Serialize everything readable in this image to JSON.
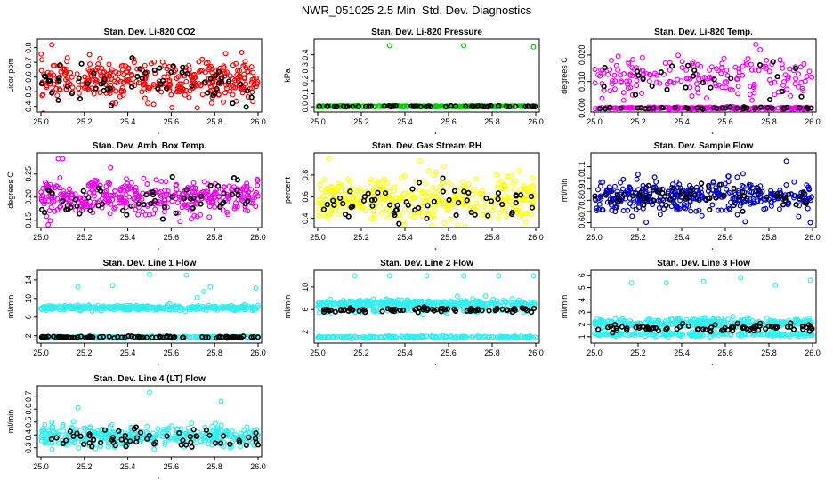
{
  "figure": {
    "title": "NWR_051025  2.5 Min. Std. Dev. Diagnostics"
  },
  "chart_data": [
    {
      "type": "scatter",
      "title": "Stan. Dev. Li-820 CO2",
      "xlabel": "",
      "ylabel": "Licor ppm",
      "xlim": [
        25.0,
        26.0
      ],
      "ylim": [
        0.38,
        0.84
      ],
      "xticks": [
        "25.0",
        "25.2",
        "25.4",
        "25.6",
        "25.8",
        "26.0"
      ],
      "yticks": [
        "0.4",
        "0.5",
        "0.6",
        "0.7",
        "0.8"
      ],
      "series": [
        {
          "name": "open",
          "color": "#ff0000",
          "bands": [
            {
              "base": 0.58,
              "spread": 0.065,
              "count": 360
            }
          ],
          "outliers": [
            [
              25.05,
              0.82
            ],
            [
              25.43,
              0.7
            ],
            [
              25.72,
              0.39
            ],
            [
              25.97,
              0.67
            ],
            [
              25.33,
              0.42
            ]
          ]
        },
        {
          "name": "filled",
          "color": "#000000",
          "bands": [
            {
              "base": 0.55,
              "spread": 0.06,
              "count": 60
            }
          ],
          "outliers": [
            [
              25.42,
              0.73
            ]
          ]
        }
      ]
    },
    {
      "type": "scatter",
      "title": "Stan. Dev. Li-820 Pressure",
      "xlabel": "",
      "ylabel": "kPa",
      "xlim": [
        25.0,
        26.0
      ],
      "ylim": [
        -0.02,
        0.5
      ],
      "xticks": [
        "25.0",
        "25.2",
        "25.4",
        "25.6",
        "25.8",
        "26.0"
      ],
      "yticks": [
        "0.0",
        "0.1",
        "0.2",
        "0.3",
        "0.4"
      ],
      "series": [
        {
          "name": "open",
          "color": "#00cc00",
          "bands": [
            {
              "base": 0.003,
              "spread": 0.002,
              "count": 320
            }
          ],
          "outliers": [
            [
              25.33,
              0.47
            ],
            [
              25.67,
              0.47
            ],
            [
              25.99,
              0.46
            ]
          ]
        },
        {
          "name": "filled",
          "color": "#000000",
          "bands": [
            {
              "base": 0.003,
              "spread": 0.002,
              "count": 60
            }
          ],
          "outliers": []
        }
      ]
    },
    {
      "type": "scatter",
      "title": "Stan. Dev. Li-820 Temp.",
      "xlabel": "",
      "ylabel": "degrees C",
      "xlim": [
        25.0,
        26.0
      ],
      "ylim": [
        -0.0005,
        0.025
      ],
      "xticks": [
        "25.0",
        "25.2",
        "25.4",
        "25.6",
        "25.8",
        "26.0"
      ],
      "yticks": [
        "0.000",
        "0.010",
        "0.020"
      ],
      "series": [
        {
          "name": "open",
          "color": "#ee00ee",
          "bands": [
            {
              "base": 0.0,
              "spread": 0.0002,
              "count": 200
            },
            {
              "base": 0.011,
              "spread": 0.004,
              "count": 180
            }
          ],
          "outliers": [
            [
              25.74,
              0.024
            ],
            [
              25.22,
              0.019
            ],
            [
              25.76,
              0.022
            ]
          ]
        },
        {
          "name": "filled",
          "color": "#000000",
          "bands": [
            {
              "base": 0.0,
              "spread": 0.0002,
              "count": 40
            },
            {
              "base": 0.011,
              "spread": 0.003,
              "count": 25
            }
          ],
          "outliers": []
        }
      ]
    },
    {
      "type": "scatter",
      "title": "Stan. Dev. Amb. Box Temp.",
      "xlabel": "",
      "ylabel": "degrees C",
      "xlim": [
        25.0,
        26.0
      ],
      "ylim": [
        0.14,
        0.29
      ],
      "xticks": [
        "25.0",
        "25.2",
        "25.4",
        "25.6",
        "25.8",
        "26.0"
      ],
      "yticks": [
        "0.15",
        "0.20",
        "0.25"
      ],
      "series": [
        {
          "name": "open",
          "color": "#ee00ee",
          "bands": [
            {
              "base": 0.2,
              "spread": 0.018,
              "count": 380
            }
          ],
          "outliers": [
            [
              25.08,
              0.283
            ],
            [
              25.1,
              0.283
            ],
            [
              25.32,
              0.264
            ]
          ]
        },
        {
          "name": "filled",
          "color": "#000000",
          "bands": [
            {
              "base": 0.195,
              "spread": 0.018,
              "count": 55
            }
          ],
          "outliers": []
        }
      ]
    },
    {
      "type": "scatter",
      "title": "Stan. Dev. Gas Stream RH",
      "xlabel": "",
      "ylabel": "percent",
      "xlim": [
        25.0,
        26.0
      ],
      "ylim": [
        0.34,
        0.98
      ],
      "xticks": [
        "25.0",
        "25.2",
        "25.4",
        "25.6",
        "25.8",
        "26.0"
      ],
      "yticks": [
        "0.4",
        "0.6",
        "0.8"
      ],
      "series": [
        {
          "name": "open",
          "color": "#ffff00",
          "bands": [
            {
              "base": 0.56,
              "spread": 0.11,
              "count": 380
            }
          ],
          "outliers": [
            [
              25.05,
              0.95
            ],
            [
              25.47,
              0.93
            ],
            [
              25.58,
              0.88
            ]
          ]
        },
        {
          "name": "filled",
          "color": "#000000",
          "bands": [
            {
              "base": 0.52,
              "spread": 0.08,
              "count": 60
            }
          ],
          "outliers": []
        }
      ]
    },
    {
      "type": "scatter",
      "title": "Stan. Dev. Sample Flow",
      "xlabel": "",
      "ylabel": "ml/min",
      "xlim": [
        25.0,
        26.0
      ],
      "ylim": [
        0.58,
        1.2
      ],
      "xticks": [
        "25.0",
        "25.2",
        "25.4",
        "25.6",
        "25.8",
        "26.0"
      ],
      "yticks": [
        "0.6",
        "0.7",
        "0.8",
        "0.9",
        "1.0",
        "1.1"
      ],
      "series": [
        {
          "name": "open",
          "color": "#0000cc",
          "bands": [
            {
              "base": 0.84,
              "spread": 0.07,
              "count": 380
            }
          ],
          "outliers": [
            [
              25.88,
              1.15
            ],
            [
              25.99,
              0.6
            ]
          ]
        },
        {
          "name": "filled",
          "color": "#000000",
          "bands": [
            {
              "base": 0.84,
              "spread": 0.06,
              "count": 60
            }
          ],
          "outliers": []
        }
      ]
    },
    {
      "type": "scatter",
      "title": "Stan. Dev. Line 1 Flow",
      "xlabel": "",
      "ylabel": "ml/min",
      "xlim": [
        25.0,
        26.0
      ],
      "ylim": [
        1,
        15.5
      ],
      "xticks": [
        "25.0",
        "25.2",
        "25.4",
        "25.6",
        "25.8",
        "26.0"
      ],
      "yticks": [
        "2",
        "6",
        "10",
        "14"
      ],
      "series": [
        {
          "name": "open",
          "color": "#33eeee",
          "bands": [
            {
              "base": 8.0,
              "spread": 0.25,
              "count": 360
            },
            {
              "base": 1.7,
              "spread": 0.1,
              "count": 200
            }
          ],
          "outliers": [
            [
              25.17,
              12.5
            ],
            [
              25.33,
              12.8
            ],
            [
              25.5,
              15.2
            ],
            [
              25.67,
              15.0
            ],
            [
              25.72,
              10.2
            ],
            [
              25.75,
              11.5
            ],
            [
              25.78,
              12.5
            ],
            [
              25.99,
              12.2
            ]
          ]
        },
        {
          "name": "filled",
          "color": "#000000",
          "bands": [
            {
              "base": 1.7,
              "spread": 0.1,
              "count": 90
            }
          ],
          "outliers": []
        }
      ]
    },
    {
      "type": "scatter",
      "title": "Stan. Dev. Line 2 Flow",
      "xlabel": "",
      "ylabel": "ml/min",
      "xlim": [
        25.0,
        26.0
      ],
      "ylim": [
        0.5,
        12.5
      ],
      "xticks": [
        "25.0",
        "25.2",
        "25.4",
        "25.6",
        "25.8",
        "26.0"
      ],
      "yticks": [
        "2",
        "6",
        "10"
      ],
      "series": [
        {
          "name": "open",
          "color": "#33eeee",
          "bands": [
            {
              "base": 7.0,
              "spread": 0.35,
              "count": 360
            },
            {
              "base": 1.1,
              "spread": 0.1,
              "count": 200
            },
            {
              "base": 5.9,
              "spread": 0.3,
              "count": 80
            }
          ],
          "outliers": [
            [
              25.17,
              12.0
            ],
            [
              25.33,
              12.0
            ],
            [
              25.5,
              12.0
            ],
            [
              25.67,
              12.0
            ],
            [
              25.83,
              12.0
            ],
            [
              25.99,
              12.0
            ],
            [
              25.77,
              8.4
            ]
          ]
        },
        {
          "name": "filled",
          "color": "#000000",
          "bands": [
            {
              "base": 5.9,
              "spread": 0.25,
              "count": 80
            }
          ],
          "outliers": []
        }
      ]
    },
    {
      "type": "scatter",
      "title": "Stan. Dev. Line 3 Flow",
      "xlabel": "",
      "ylabel": "ml/min",
      "xlim": [
        25.0,
        26.0
      ],
      "ylim": [
        0.7,
        6.2
      ],
      "xticks": [
        "25.0",
        "25.2",
        "25.4",
        "25.6",
        "25.8",
        "26.0"
      ],
      "yticks": [
        "1",
        "2",
        "3",
        "4",
        "5",
        "6"
      ],
      "series": [
        {
          "name": "open",
          "color": "#33eeee",
          "bands": [
            {
              "base": 2.1,
              "spread": 0.18,
              "count": 360
            },
            {
              "base": 1.2,
              "spread": 0.08,
              "count": 200
            }
          ],
          "outliers": [
            [
              25.17,
              5.4
            ],
            [
              25.33,
              5.4
            ],
            [
              25.5,
              5.5
            ],
            [
              25.67,
              5.8
            ],
            [
              25.83,
              5.2
            ],
            [
              25.99,
              5.6
            ]
          ]
        },
        {
          "name": "filled",
          "color": "#000000",
          "bands": [
            {
              "base": 1.7,
              "spread": 0.15,
              "count": 80
            }
          ],
          "outliers": []
        }
      ]
    },
    {
      "type": "scatter",
      "title": "Stan. Dev. Line 4 (LT) Flow",
      "xlabel": "",
      "ylabel": "ml/min",
      "xlim": [
        25.0,
        26.0
      ],
      "ylim": [
        0.25,
        0.76
      ],
      "xticks": [
        "25.0",
        "25.2",
        "25.4",
        "25.6",
        "25.8",
        "26.0"
      ],
      "yticks": [
        "0.3",
        "0.4",
        "0.5",
        "0.6",
        "0.7"
      ],
      "series": [
        {
          "name": "open",
          "color": "#33eeee",
          "bands": [
            {
              "base": 0.39,
              "spread": 0.04,
              "count": 380
            }
          ],
          "outliers": [
            [
              25.17,
              0.61
            ],
            [
              25.5,
              0.73
            ],
            [
              25.83,
              0.66
            ],
            [
              25.05,
              0.5
            ]
          ]
        },
        {
          "name": "filled",
          "color": "#000000",
          "bands": [
            {
              "base": 0.37,
              "spread": 0.04,
              "count": 60
            }
          ],
          "outliers": []
        }
      ]
    }
  ]
}
